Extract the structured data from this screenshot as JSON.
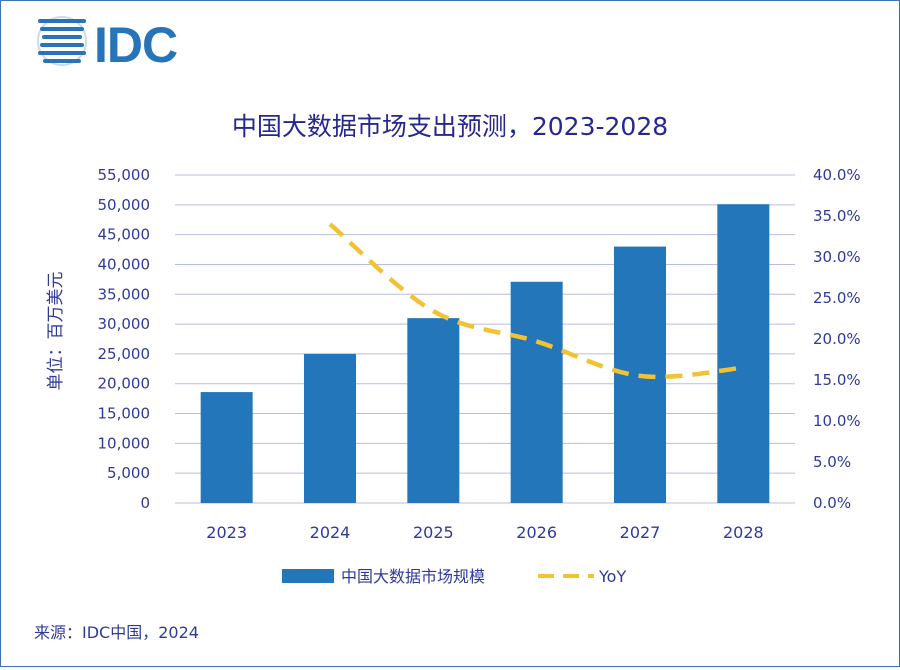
{
  "logo": {
    "text": "IDC",
    "color": "#2874b8"
  },
  "chart_data": {
    "type": "bar",
    "title": "中国大数据市场支出预测，2023-2028",
    "ylabel": "单位：百万美元",
    "categories": [
      "2023",
      "2024",
      "2025",
      "2026",
      "2027",
      "2028"
    ],
    "series": [
      {
        "name": "中国大数据市场规模",
        "type": "bar",
        "axis": "left",
        "color": "#2476bb",
        "values": [
          18600,
          25000,
          31000,
          37100,
          43000,
          50100
        ]
      },
      {
        "name": "YoY",
        "type": "line",
        "axis": "right",
        "style": "dashed",
        "color": "#f1c232",
        "values": [
          null,
          0.34,
          0.234,
          0.197,
          0.155,
          0.165
        ]
      }
    ],
    "left_axis": {
      "min": 0,
      "max": 55000,
      "step": 5000,
      "ticks": [
        "0",
        "5,000",
        "10,000",
        "15,000",
        "20,000",
        "25,000",
        "30,000",
        "35,000",
        "40,000",
        "45,000",
        "50,000",
        "55,000"
      ]
    },
    "right_axis": {
      "min": 0,
      "max": 0.4,
      "step": 0.05,
      "ticks": [
        "0.0%",
        "5.0%",
        "10.0%",
        "15.0%",
        "20.0%",
        "25.0%",
        "30.0%",
        "35.0%",
        "40.0%"
      ]
    },
    "legend": {
      "position": "bottom",
      "items": [
        "中国大数据市场规模",
        "YoY"
      ]
    },
    "grid": true
  },
  "source": "来源：IDC中国，2024"
}
